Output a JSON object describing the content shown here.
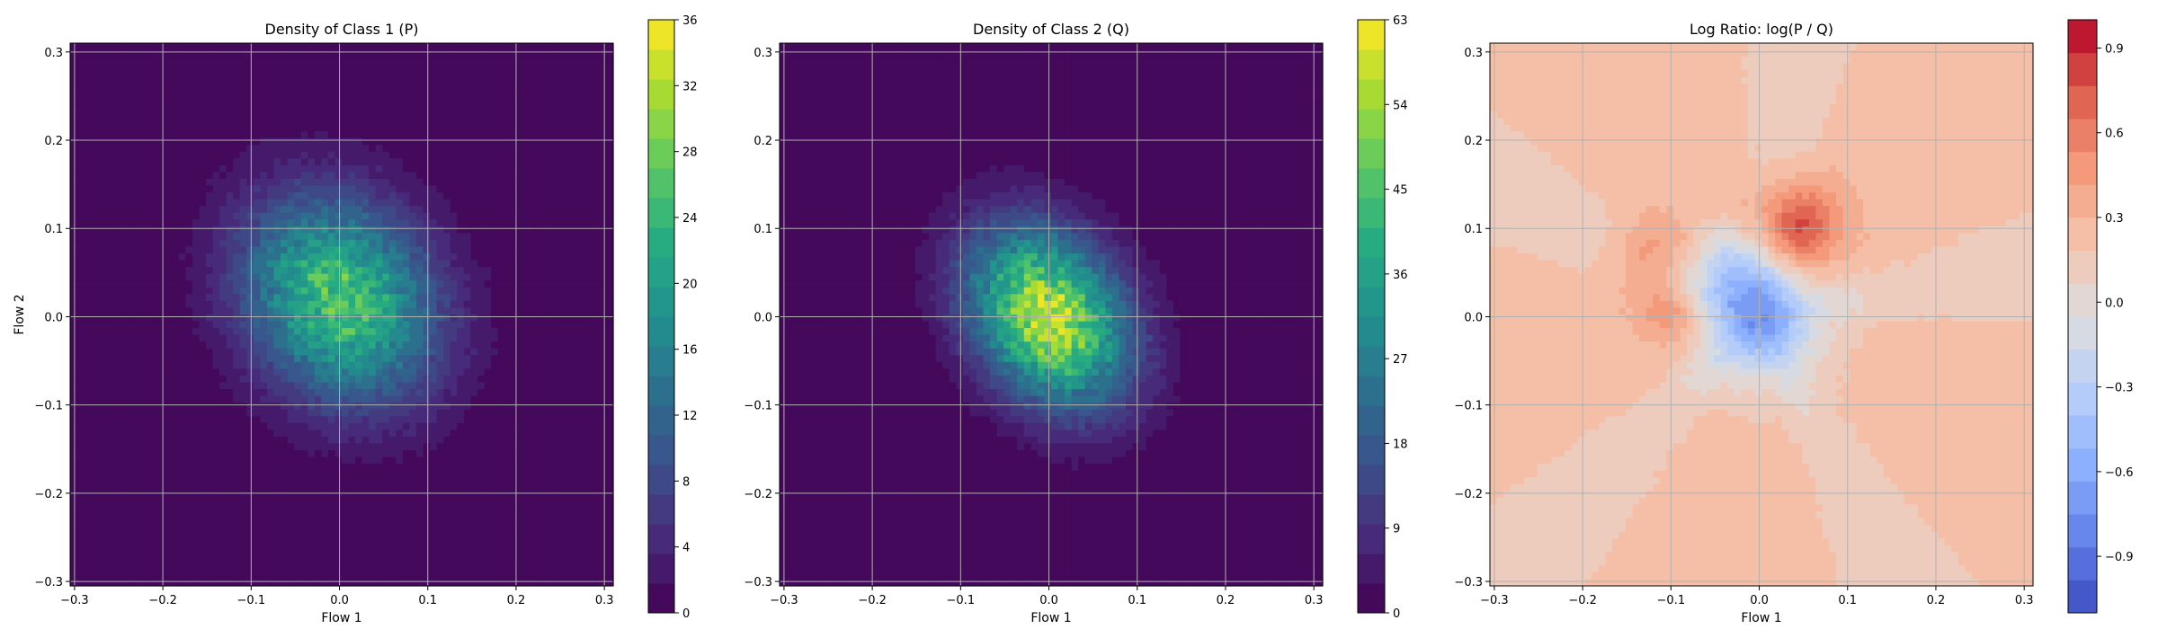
{
  "chart_data": [
    {
      "type": "heatmap",
      "title": "Density of Class 1 (P)",
      "xlabel": "Flow 1",
      "ylabel": "Flow 2",
      "xlim": [
        -0.305,
        0.31
      ],
      "ylim": [
        -0.305,
        0.31
      ],
      "xticks": [
        -0.3,
        -0.2,
        -0.1,
        0.0,
        0.1,
        0.2,
        0.3
      ],
      "yticks": [
        -0.3,
        -0.2,
        -0.1,
        0.0,
        0.1,
        0.2,
        0.3
      ],
      "xtick_labels": [
        "−0.3",
        "−0.2",
        "−0.1",
        "0.0",
        "0.1",
        "0.2",
        "0.3"
      ],
      "ytick_labels": [
        "−0.3",
        "−0.2",
        "−0.1",
        "0.0",
        "0.1",
        "0.2",
        "0.3"
      ],
      "grid": true,
      "colormap": "viridis",
      "density_model": {
        "center": [
          0.0,
          0.02
        ],
        "sigma_major": 0.085,
        "sigma_minor": 0.07,
        "angle_deg": -55,
        "peak": 26
      },
      "colorbar": {
        "min": 0,
        "max": 36,
        "ticks": [
          0,
          4,
          8,
          12,
          16,
          20,
          24,
          28,
          32,
          36
        ],
        "tick_labels": [
          "0",
          "4",
          "8",
          "12",
          "16",
          "20",
          "24",
          "28",
          "32",
          "36"
        ]
      }
    },
    {
      "type": "heatmap",
      "title": "Density of Class 2 (Q)",
      "xlabel": "Flow 1",
      "ylabel": "",
      "xlim": [
        -0.305,
        0.31
      ],
      "ylim": [
        -0.305,
        0.31
      ],
      "xticks": [
        -0.3,
        -0.2,
        -0.1,
        0.0,
        0.1,
        0.2,
        0.3
      ],
      "yticks": [
        -0.3,
        -0.2,
        -0.1,
        0.0,
        0.1,
        0.2,
        0.3
      ],
      "xtick_labels": [
        "−0.3",
        "−0.2",
        "−0.1",
        "0.0",
        "0.1",
        "0.2",
        "0.3"
      ],
      "ytick_labels": [
        "−0.3",
        "−0.2",
        "−0.1",
        "0.0",
        "0.1",
        "0.2",
        "0.3"
      ],
      "grid": true,
      "colormap": "viridis",
      "density_model": {
        "center": [
          0.0,
          0.0
        ],
        "sigma_major": 0.075,
        "sigma_minor": 0.055,
        "angle_deg": -55,
        "peak": 58
      },
      "colorbar": {
        "min": 0,
        "max": 63,
        "ticks": [
          0,
          9,
          18,
          27,
          36,
          45,
          54,
          63
        ],
        "tick_labels": [
          "0",
          "9",
          "18",
          "27",
          "36",
          "45",
          "54",
          "63"
        ]
      }
    },
    {
      "type": "heatmap",
      "title": "Log Ratio: log(P / Q)",
      "xlabel": "Flow 1",
      "ylabel": "",
      "xlim": [
        -0.305,
        0.31
      ],
      "ylim": [
        -0.305,
        0.31
      ],
      "xticks": [
        -0.3,
        -0.2,
        -0.1,
        0.0,
        0.1,
        0.2,
        0.3
      ],
      "yticks": [
        -0.3,
        -0.2,
        -0.1,
        0.0,
        0.1,
        0.2,
        0.3
      ],
      "xtick_labels": [
        "−0.3",
        "−0.2",
        "−0.1",
        "0.0",
        "0.1",
        "0.2",
        "0.3"
      ],
      "ytick_labels": [
        "−0.3",
        "−0.2",
        "−0.1",
        "0.0",
        "0.1",
        "0.2",
        "0.3"
      ],
      "grid": true,
      "colormap": "coolwarm",
      "colorbar": {
        "min": -1.1,
        "max": 1.0,
        "ticks": [
          -0.9,
          -0.6,
          -0.3,
          0.0,
          0.3,
          0.6,
          0.9
        ],
        "tick_labels": [
          "−0.9",
          "−0.6",
          "−0.3",
          "0.0",
          "0.3",
          "0.6",
          "0.9"
        ]
      }
    }
  ]
}
